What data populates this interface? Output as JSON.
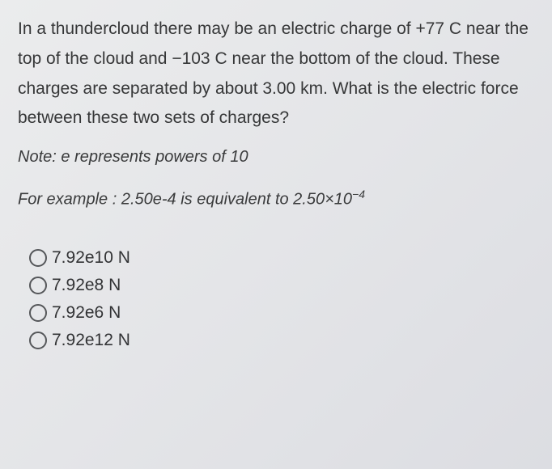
{
  "question": {
    "text": "In a thundercloud there may be an electric charge of +77 C near the top of the cloud and −103 C near the bottom of the cloud. These charges are separated by about 3.00 km. What is the electric force between these two sets of charges?",
    "note_prefix": "Note: e represents powers of 10",
    "example_prefix": "For example : 2.50e-4 is equivalent to 2.50×10",
    "example_exponent": "−4"
  },
  "options": [
    {
      "label": "7.92e10 N"
    },
    {
      "label": "7.92e8 N"
    },
    {
      "label": "7.92e6 N"
    },
    {
      "label": "7.92e12 N"
    }
  ],
  "styles": {
    "text_color": "#363738",
    "background_start": "#ebeced",
    "background_end": "#dcdde2",
    "radio_border": "#55575a",
    "font_size_body": 21,
    "font_size_note": 20,
    "line_height": 1.75
  }
}
